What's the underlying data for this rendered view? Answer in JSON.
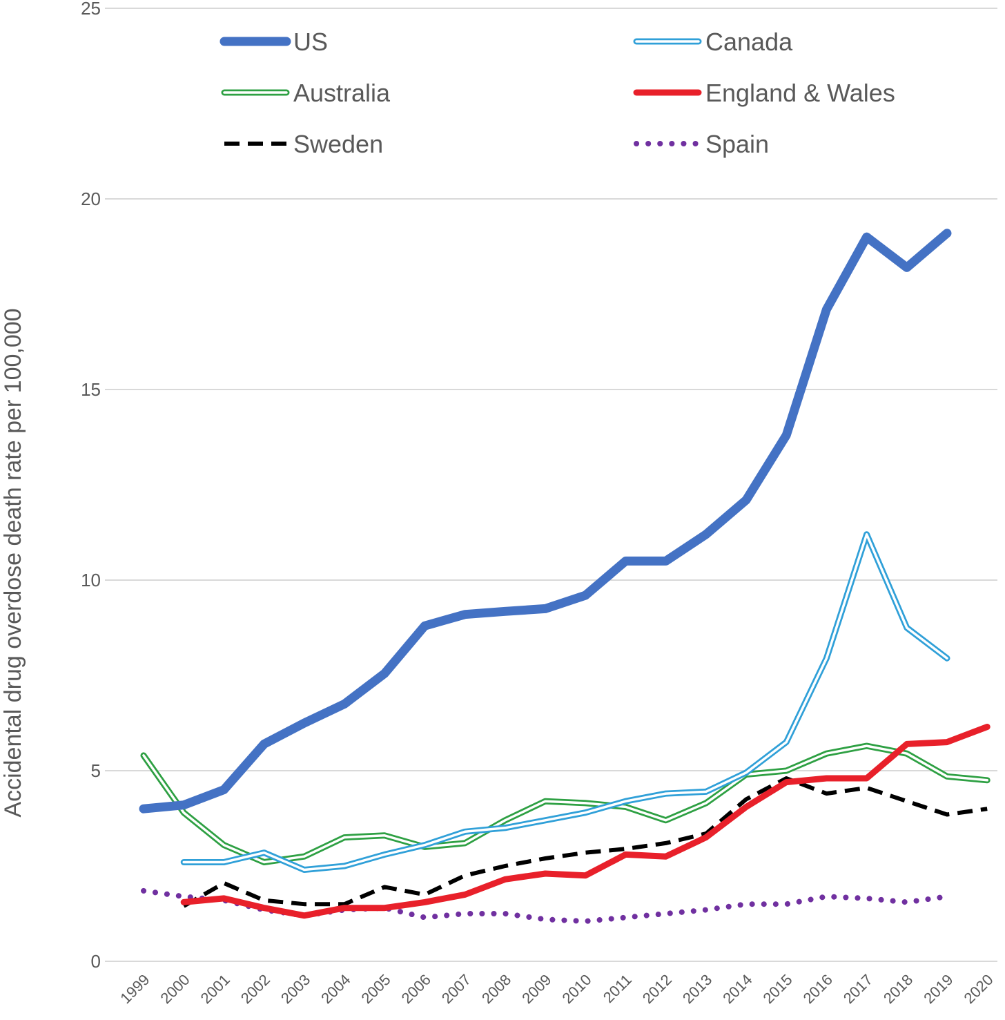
{
  "chart_data": {
    "type": "line",
    "title": "",
    "xlabel": "",
    "ylabel": "Accidental drug overdose death rate per 100,000",
    "ylim": [
      0,
      25
    ],
    "yticks": [
      0,
      5,
      10,
      15,
      20,
      25
    ],
    "grid": true,
    "legend_position": "top",
    "categories": [
      "1999",
      "2000",
      "2001",
      "2002",
      "2003",
      "2004",
      "2005",
      "2006",
      "2007",
      "2008",
      "2009",
      "2010",
      "2011",
      "2012",
      "2013",
      "2014",
      "2015",
      "2016",
      "2017",
      "2018",
      "2019",
      "2020"
    ],
    "series": [
      {
        "name": "US",
        "color": "#4472c4",
        "style": "thick",
        "values": [
          4.0,
          4.1,
          4.5,
          5.7,
          6.25,
          6.75,
          7.55,
          8.8,
          9.1,
          9.18,
          9.25,
          9.6,
          10.5,
          10.5,
          11.2,
          12.1,
          13.8,
          17.1,
          19.0,
          18.2,
          19.1,
          null
        ]
      },
      {
        "name": "Canada",
        "color": "#30a0d8",
        "style": "double",
        "values": [
          null,
          2.6,
          2.6,
          2.85,
          2.4,
          2.5,
          2.8,
          3.05,
          3.4,
          3.5,
          3.7,
          3.9,
          4.2,
          4.4,
          4.45,
          4.95,
          5.75,
          7.95,
          11.2,
          8.75,
          7.95,
          null
        ]
      },
      {
        "name": "Australia",
        "color": "#2ea043",
        "style": "double",
        "values": [
          5.4,
          3.9,
          3.05,
          2.6,
          2.75,
          3.25,
          3.3,
          3.0,
          3.1,
          3.7,
          4.2,
          4.15,
          4.05,
          3.7,
          4.15,
          4.9,
          5.0,
          5.45,
          5.65,
          5.45,
          4.85,
          4.75
        ]
      },
      {
        "name": "England & Wales",
        "color": "#e8202a",
        "style": "thick-red",
        "values": [
          null,
          1.55,
          1.65,
          1.4,
          1.2,
          1.4,
          1.4,
          1.55,
          1.75,
          2.15,
          2.3,
          2.25,
          2.8,
          2.75,
          3.25,
          4.05,
          4.7,
          4.8,
          4.8,
          5.7,
          5.75,
          6.15
        ]
      },
      {
        "name": "Sweden",
        "color": "#000000",
        "style": "dashed",
        "values": [
          null,
          1.45,
          2.05,
          1.6,
          1.5,
          1.5,
          1.95,
          1.75,
          2.25,
          2.5,
          2.7,
          2.85,
          2.95,
          3.1,
          3.35,
          4.25,
          4.8,
          4.4,
          4.55,
          4.2,
          3.85,
          4.0
        ]
      },
      {
        "name": "Spain",
        "color": "#7030a0",
        "style": "dotted",
        "values": [
          1.85,
          1.7,
          1.6,
          1.35,
          1.2,
          1.35,
          1.4,
          1.15,
          1.25,
          1.25,
          1.1,
          1.05,
          1.15,
          1.25,
          1.35,
          1.5,
          1.5,
          1.7,
          1.65,
          1.55,
          1.7,
          null
        ]
      }
    ]
  }
}
